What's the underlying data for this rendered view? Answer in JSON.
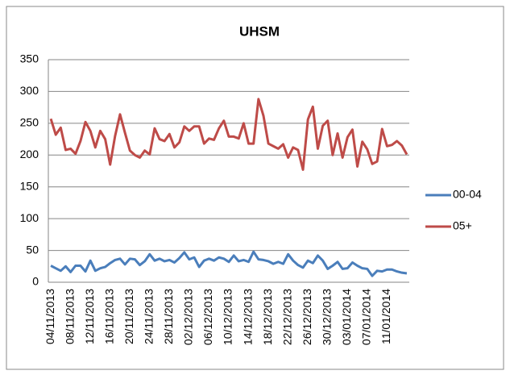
{
  "chart_data": {
    "type": "line",
    "title": "UHSM",
    "categories": [
      "04/11/2013",
      null,
      null,
      null,
      "08/11/2013",
      null,
      null,
      null,
      "12/11/2013",
      null,
      null,
      null,
      "16/11/2013",
      null,
      null,
      null,
      "20/11/2013",
      null,
      null,
      null,
      "24/11/2013",
      null,
      null,
      null,
      "28/11/2013",
      null,
      null,
      null,
      "02/12/2013",
      null,
      null,
      null,
      "06/12/2013",
      null,
      null,
      null,
      "10/12/2013",
      null,
      null,
      null,
      "14/12/2013",
      null,
      null,
      null,
      "18/12/2013",
      null,
      null,
      null,
      "22/12/2013",
      null,
      null,
      null,
      "26/12/2013",
      null,
      null,
      null,
      "30/12/2013",
      null,
      null,
      null,
      "03/01/2014",
      null,
      null,
      null,
      "07/01/2014",
      null,
      null,
      null,
      "11/01/2014",
      null,
      null,
      null,
      null
    ],
    "series": [
      {
        "name": "00-04",
        "color": "#4a7ebb",
        "values": [
          26,
          22,
          18,
          25,
          16,
          26,
          26,
          17,
          34,
          18,
          22,
          24,
          30,
          35,
          37,
          28,
          37,
          36,
          27,
          33,
          44,
          34,
          37,
          33,
          35,
          31,
          38,
          47,
          36,
          39,
          24,
          34,
          37,
          34,
          39,
          37,
          32,
          42,
          33,
          35,
          32,
          48,
          36,
          35,
          33,
          29,
          32,
          29,
          44,
          34,
          27,
          23,
          34,
          30,
          42,
          34,
          21,
          26,
          32,
          21,
          22,
          31,
          26,
          22,
          21,
          10,
          18,
          17,
          20,
          20,
          17,
          15,
          14
        ]
      },
      {
        "name": "05+",
        "color": "#be4b48",
        "values": [
          257,
          232,
          243,
          208,
          210,
          202,
          222,
          252,
          238,
          212,
          238,
          225,
          185,
          230,
          264,
          235,
          207,
          200,
          196,
          207,
          201,
          242,
          225,
          222,
          233,
          212,
          220,
          245,
          238,
          245,
          245,
          218,
          226,
          224,
          242,
          254,
          229,
          229,
          226,
          250,
          218,
          218,
          288,
          262,
          218,
          214,
          210,
          217,
          196,
          212,
          208,
          177,
          256,
          276,
          210,
          246,
          254,
          200,
          234,
          196,
          228,
          240,
          182,
          221,
          209,
          186,
          190,
          241,
          214,
          216,
          222,
          215,
          201
        ]
      }
    ],
    "ylim": [
      0,
      350
    ],
    "yticks": [
      0,
      50,
      100,
      150,
      200,
      250,
      300,
      350
    ],
    "grid": true,
    "legend": "right"
  }
}
